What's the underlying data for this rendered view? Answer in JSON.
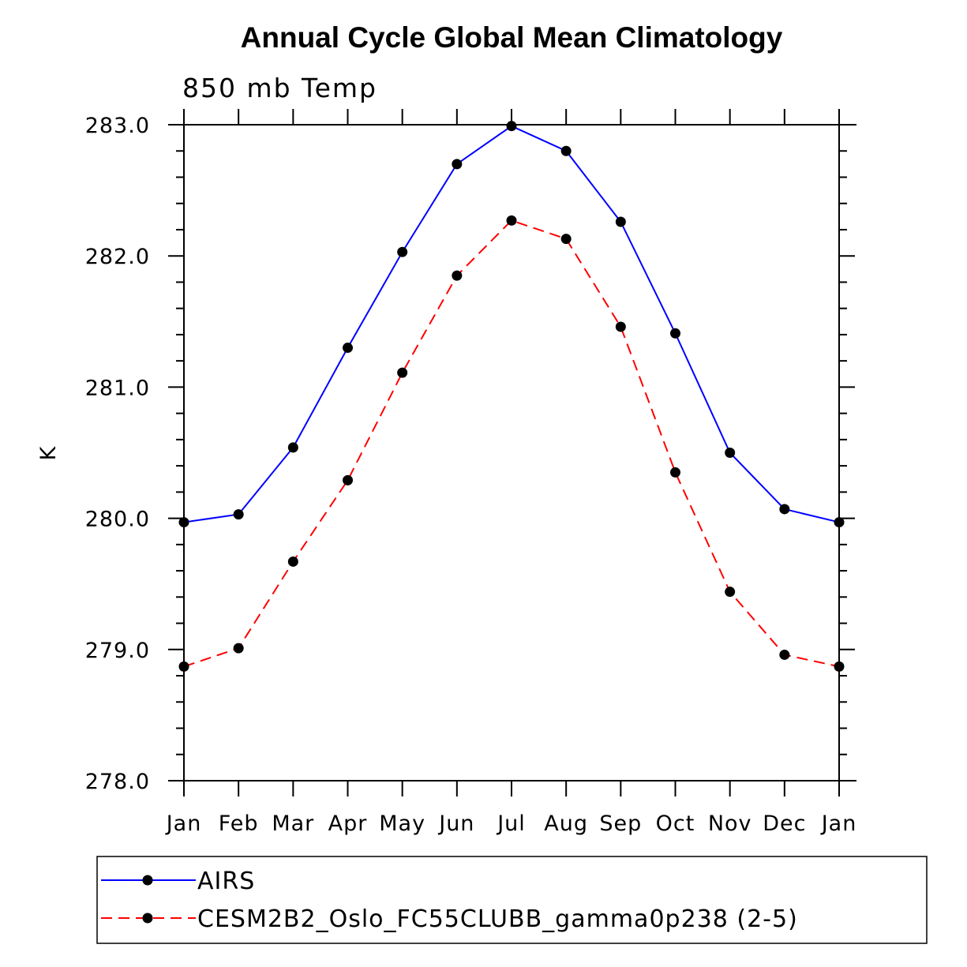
{
  "chart_data": {
    "type": "line",
    "title": "Annual Cycle Global Mean Climatology",
    "subtitle": "850 mb Temp",
    "xlabel": "",
    "ylabel": "K",
    "categories": [
      "Jan",
      "Feb",
      "Mar",
      "Apr",
      "May",
      "Jun",
      "Jul",
      "Aug",
      "Sep",
      "Oct",
      "Nov",
      "Dec",
      "Jan"
    ],
    "ylim": [
      278.0,
      283.0
    ],
    "yticks": [
      "278.0",
      "279.0",
      "280.0",
      "281.0",
      "282.0",
      "283.0"
    ],
    "grid": false,
    "legend_placement": "bottom",
    "series": [
      {
        "name": "AIRS",
        "color": "#0000ff",
        "dash": "solid",
        "values": [
          279.97,
          280.03,
          280.54,
          281.3,
          282.03,
          282.7,
          282.99,
          282.8,
          282.26,
          281.41,
          280.5,
          280.07,
          279.97
        ]
      },
      {
        "name": "CESM2B2_Oslo_FC55CLUBB_gamma0p238 (2-5)",
        "color": "#ff0000",
        "dash": "dashed",
        "values": [
          278.87,
          279.01,
          279.67,
          280.29,
          281.11,
          281.85,
          282.27,
          282.13,
          281.46,
          280.35,
          279.44,
          278.96,
          278.87
        ]
      }
    ]
  }
}
